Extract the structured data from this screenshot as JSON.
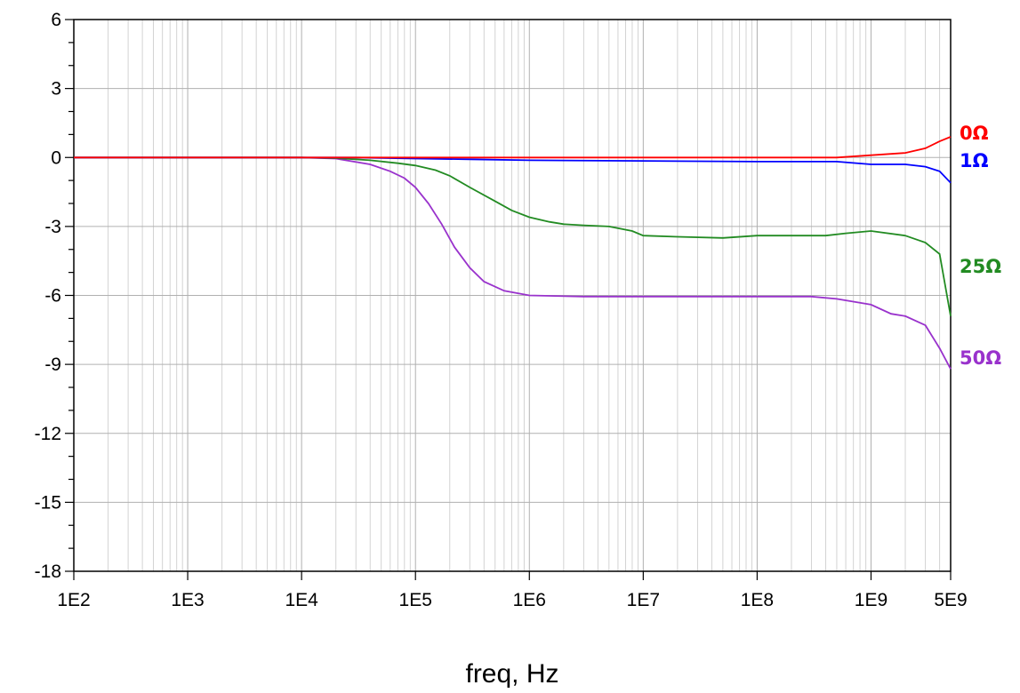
{
  "chart_data": {
    "type": "line",
    "title": "",
    "xlabel": "freq, Hz",
    "ylabel": "",
    "x_scale": "log",
    "xlim": [
      100,
      5000000000
    ],
    "ylim": [
      -18,
      6
    ],
    "grid": true,
    "x_ticks": [
      {
        "value": 100,
        "label": "1E2"
      },
      {
        "value": 1000,
        "label": "1E3"
      },
      {
        "value": 10000,
        "label": "1E4"
      },
      {
        "value": 100000,
        "label": "1E5"
      },
      {
        "value": 1000000,
        "label": "1E6"
      },
      {
        "value": 10000000,
        "label": "1E7"
      },
      {
        "value": 100000000,
        "label": "1E8"
      },
      {
        "value": 1000000000,
        "label": "1E9"
      },
      {
        "value": 5000000000,
        "label": "5E9"
      }
    ],
    "y_ticks": [
      6,
      3,
      0,
      -3,
      -6,
      -9,
      -12,
      -15,
      -18
    ],
    "series": [
      {
        "name": "0Ω",
        "color": "#ff0000",
        "points": [
          [
            100,
            0
          ],
          [
            10000,
            0
          ],
          [
            1000000,
            0
          ],
          [
            100000000,
            0
          ],
          [
            500000000,
            0
          ],
          [
            1000000000,
            0.1
          ],
          [
            2000000000,
            0.2
          ],
          [
            3000000000,
            0.4
          ],
          [
            4000000000,
            0.7
          ],
          [
            5000000000,
            0.9
          ]
        ]
      },
      {
        "name": "1Ω",
        "color": "#0000ff",
        "points": [
          [
            100,
            0
          ],
          [
            10000,
            0
          ],
          [
            30000,
            0
          ],
          [
            100000,
            -0.05
          ],
          [
            300000,
            -0.08
          ],
          [
            1000000,
            -0.12
          ],
          [
            10000000,
            -0.15
          ],
          [
            100000000,
            -0.18
          ],
          [
            500000000,
            -0.18
          ],
          [
            1000000000,
            -0.3
          ],
          [
            2000000000,
            -0.3
          ],
          [
            3000000000,
            -0.4
          ],
          [
            4000000000,
            -0.6
          ],
          [
            5000000000,
            -1.1
          ]
        ]
      },
      {
        "name": "25Ω",
        "color": "#228b22",
        "points": [
          [
            100,
            0
          ],
          [
            10000,
            0
          ],
          [
            20000,
            -0.03
          ],
          [
            40000,
            -0.12
          ],
          [
            70000,
            -0.25
          ],
          [
            100000,
            -0.35
          ],
          [
            150000,
            -0.55
          ],
          [
            200000,
            -0.8
          ],
          [
            300000,
            -1.3
          ],
          [
            500000,
            -1.9
          ],
          [
            700000,
            -2.3
          ],
          [
            1000000,
            -2.6
          ],
          [
            1500000,
            -2.8
          ],
          [
            2000000,
            -2.9
          ],
          [
            3000000,
            -2.95
          ],
          [
            5000000,
            -3.0
          ],
          [
            8000000,
            -3.2
          ],
          [
            10000000,
            -3.4
          ],
          [
            20000000,
            -3.45
          ],
          [
            50000000,
            -3.5
          ],
          [
            100000000,
            -3.4
          ],
          [
            200000000,
            -3.4
          ],
          [
            400000000,
            -3.4
          ],
          [
            600000000,
            -3.3
          ],
          [
            1000000000,
            -3.2
          ],
          [
            2000000000,
            -3.4
          ],
          [
            3000000000,
            -3.7
          ],
          [
            4000000000,
            -4.2
          ],
          [
            5000000000,
            -6.9
          ]
        ]
      },
      {
        "name": "50Ω",
        "color": "#9932cc",
        "points": [
          [
            100,
            0
          ],
          [
            10000,
            0
          ],
          [
            20000,
            -0.05
          ],
          [
            40000,
            -0.3
          ],
          [
            60000,
            -0.6
          ],
          [
            80000,
            -0.9
          ],
          [
            100000,
            -1.3
          ],
          [
            130000,
            -2.0
          ],
          [
            170000,
            -2.9
          ],
          [
            220000,
            -3.9
          ],
          [
            300000,
            -4.8
          ],
          [
            400000,
            -5.4
          ],
          [
            600000,
            -5.8
          ],
          [
            1000000,
            -6.0
          ],
          [
            3000000,
            -6.05
          ],
          [
            10000000,
            -6.05
          ],
          [
            100000000,
            -6.05
          ],
          [
            300000000,
            -6.05
          ],
          [
            500000000,
            -6.15
          ],
          [
            1000000000,
            -6.4
          ],
          [
            1500000000,
            -6.8
          ],
          [
            2000000000,
            -6.9
          ],
          [
            3000000000,
            -7.3
          ],
          [
            4000000000,
            -8.3
          ],
          [
            5000000000,
            -9.2
          ]
        ]
      }
    ]
  }
}
